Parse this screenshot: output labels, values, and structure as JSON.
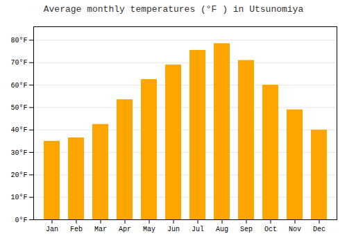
{
  "chart_data": {
    "type": "bar",
    "title": "Average monthly temperatures (°F ) in Utsunomiya",
    "categories": [
      "Jan",
      "Feb",
      "Mar",
      "Apr",
      "May",
      "Jun",
      "Jul",
      "Aug",
      "Sep",
      "Oct",
      "Nov",
      "Dec"
    ],
    "values": [
      35,
      36.5,
      42.5,
      53.5,
      62.5,
      69,
      75.5,
      78.5,
      71,
      60,
      49,
      40
    ],
    "color": "#FFA500",
    "ylim": [
      0,
      86
    ],
    "yticks": [
      {
        "value": 0,
        "label": "0°F"
      },
      {
        "value": 10,
        "label": "10°F"
      },
      {
        "value": 20,
        "label": "20°F"
      },
      {
        "value": 30,
        "label": "30°F"
      },
      {
        "value": 40,
        "label": "40°F"
      },
      {
        "value": 50,
        "label": "50°F"
      },
      {
        "value": 60,
        "label": "60°F"
      },
      {
        "value": 70,
        "label": "70°F"
      },
      {
        "value": 80,
        "label": "80°F"
      }
    ],
    "grid": true
  }
}
